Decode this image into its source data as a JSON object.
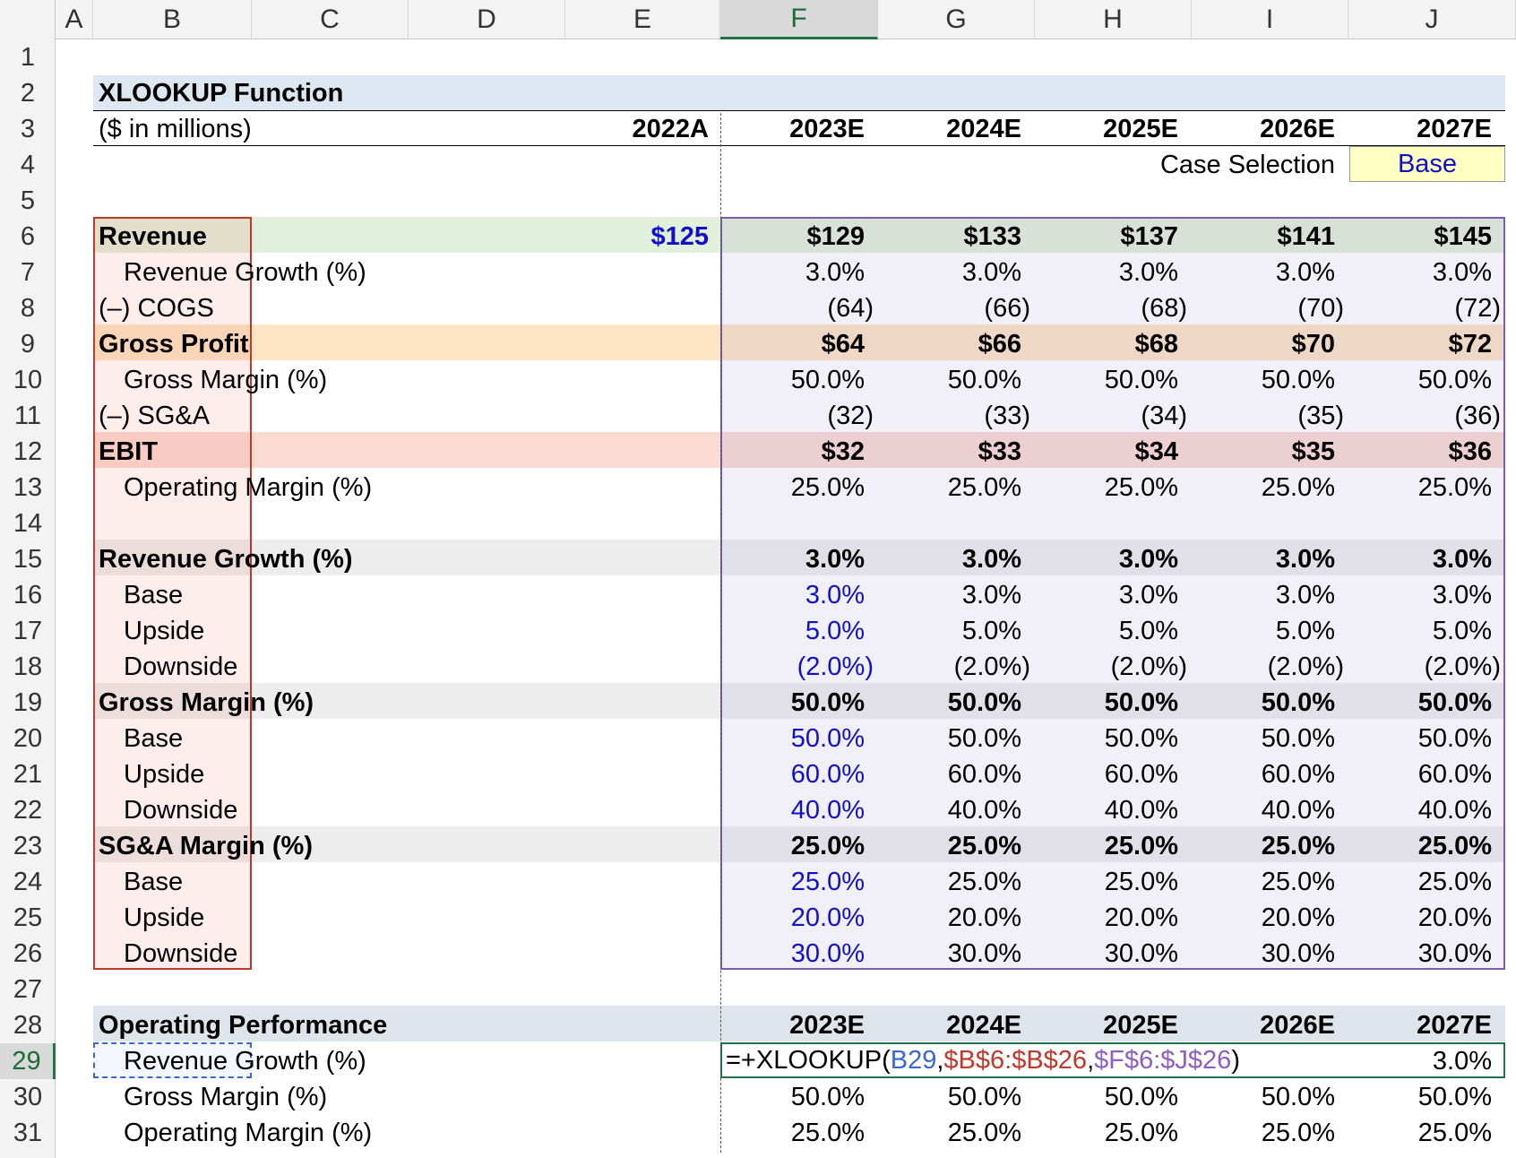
{
  "columns": [
    "A",
    "B",
    "C",
    "D",
    "E",
    "F",
    "G",
    "H",
    "I",
    "J"
  ],
  "selected_column": "F",
  "selected_row": 29,
  "rows": [
    "1",
    "2",
    "3",
    "4",
    "5",
    "6",
    "7",
    "8",
    "9",
    "10",
    "11",
    "12",
    "13",
    "14",
    "15",
    "16",
    "17",
    "18",
    "19",
    "20",
    "21",
    "22",
    "23",
    "24",
    "25",
    "26",
    "27",
    "28",
    "29",
    "30",
    "31"
  ],
  "title": "XLOOKUP Function",
  "units": "($ in millions)",
  "years": [
    "2022A",
    "2023E",
    "2024E",
    "2025E",
    "2026E",
    "2027E"
  ],
  "case_selection": {
    "label": "Case Selection",
    "value": "Base"
  },
  "model": {
    "revenue": {
      "label": "Revenue",
      "values": [
        "$125",
        "$129",
        "$133",
        "$137",
        "$141",
        "$145"
      ]
    },
    "revenue_growth": {
      "label": "Revenue Growth (%)",
      "values": [
        "3.0%",
        "3.0%",
        "3.0%",
        "3.0%",
        "3.0%"
      ]
    },
    "cogs": {
      "label": "(–) COGS",
      "values": [
        "(64)",
        "(66)",
        "(68)",
        "(70)",
        "(72)"
      ]
    },
    "gross_profit": {
      "label": "Gross Profit",
      "values": [
        "$64",
        "$66",
        "$68",
        "$70",
        "$72"
      ]
    },
    "gross_margin": {
      "label": "Gross Margin (%)",
      "values": [
        "50.0%",
        "50.0%",
        "50.0%",
        "50.0%",
        "50.0%"
      ]
    },
    "sga": {
      "label": "(–) SG&A",
      "values": [
        "(32)",
        "(33)",
        "(34)",
        "(35)",
        "(36)"
      ]
    },
    "ebit": {
      "label": "EBIT",
      "values": [
        "$32",
        "$33",
        "$34",
        "$35",
        "$36"
      ]
    },
    "operating_margin": {
      "label": "Operating Margin (%)",
      "values": [
        "25.0%",
        "25.0%",
        "25.0%",
        "25.0%",
        "25.0%"
      ]
    }
  },
  "assumptions": {
    "revenue_growth": {
      "label": "Revenue Growth (%)",
      "values": [
        "3.0%",
        "3.0%",
        "3.0%",
        "3.0%",
        "3.0%"
      ],
      "base": {
        "label": "Base",
        "values": [
          "3.0%",
          "3.0%",
          "3.0%",
          "3.0%",
          "3.0%"
        ]
      },
      "upside": {
        "label": "Upside",
        "values": [
          "5.0%",
          "5.0%",
          "5.0%",
          "5.0%",
          "5.0%"
        ]
      },
      "downside": {
        "label": "Downside",
        "values": [
          "(2.0%)",
          "(2.0%)",
          "(2.0%)",
          "(2.0%)",
          "(2.0%)"
        ]
      }
    },
    "gross_margin": {
      "label": "Gross Margin (%)",
      "values": [
        "50.0%",
        "50.0%",
        "50.0%",
        "50.0%",
        "50.0%"
      ],
      "base": {
        "label": "Base",
        "values": [
          "50.0%",
          "50.0%",
          "50.0%",
          "50.0%",
          "50.0%"
        ]
      },
      "upside": {
        "label": "Upside",
        "values": [
          "60.0%",
          "60.0%",
          "60.0%",
          "60.0%",
          "60.0%"
        ]
      },
      "downside": {
        "label": "Downside",
        "values": [
          "40.0%",
          "40.0%",
          "40.0%",
          "40.0%",
          "40.0%"
        ]
      }
    },
    "sga_margin": {
      "label": "SG&A Margin (%)",
      "values": [
        "25.0%",
        "25.0%",
        "25.0%",
        "25.0%",
        "25.0%"
      ],
      "base": {
        "label": "Base",
        "values": [
          "25.0%",
          "25.0%",
          "25.0%",
          "25.0%",
          "25.0%"
        ]
      },
      "upside": {
        "label": "Upside",
        "values": [
          "20.0%",
          "20.0%",
          "20.0%",
          "20.0%",
          "20.0%"
        ]
      },
      "downside": {
        "label": "Downside",
        "values": [
          "30.0%",
          "30.0%",
          "30.0%",
          "30.0%",
          "30.0%"
        ]
      }
    }
  },
  "operating_performance": {
    "label": "Operating Performance",
    "years": [
      "2023E",
      "2024E",
      "2025E",
      "2026E",
      "2027E"
    ],
    "revenue_growth": {
      "label": "Revenue Growth (%)",
      "last_value": "3.0%"
    },
    "gross_margin": {
      "label": "Gross Margin (%)",
      "values": [
        "50.0%",
        "50.0%",
        "50.0%",
        "50.0%",
        "50.0%"
      ]
    },
    "operating_margin": {
      "label": "Operating Margin (%)",
      "values": [
        "25.0%",
        "25.0%",
        "25.0%",
        "25.0%",
        "25.0%"
      ]
    }
  },
  "formula": {
    "prefix": "=+XLOOKUP(",
    "arg1": "B29",
    "sep1": ",",
    "arg2": "$B$6:$B$26",
    "sep2": ",",
    "arg3": "$F$6:$J$26",
    "suffix": ")"
  },
  "colors": {
    "input_blue": "#1010c8",
    "revenue_band": "#e2efda",
    "gross_profit_band": "#fce4c4",
    "ebit_band": "#fadbd2",
    "assumption_band": "#ededed",
    "header_band": "#dde4ec",
    "title_band": "#dde7f2",
    "case_fill": "#ffffc4"
  }
}
